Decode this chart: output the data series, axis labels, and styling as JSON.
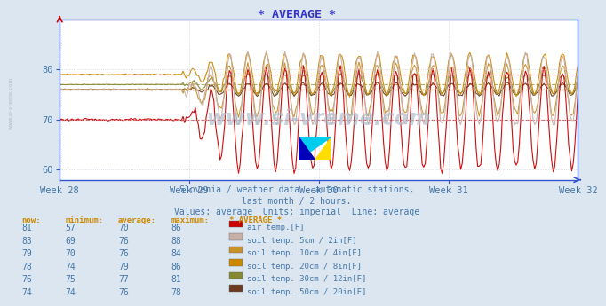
{
  "title": "* AVERAGE *",
  "subtitle1": "Slovenia / weather data - automatic stations.",
  "subtitle2": "last month / 2 hours.",
  "subtitle3": "Values: average  Units: imperial  Line: average",
  "watermark": "www.si-vreme.com",
  "x_tick_labels": [
    "Week 28",
    "Week 29",
    "Week 30",
    "Week 31",
    "Week 32"
  ],
  "x_tick_positions": [
    0,
    84,
    168,
    252,
    336
  ],
  "y_ticks": [
    60,
    70,
    80
  ],
  "ylim": [
    58,
    90
  ],
  "xlim": [
    0,
    336
  ],
  "bg_color": "#dce6f0",
  "plot_bg_color": "#ffffff",
  "grid_color": "#ccccdd",
  "title_color": "#3333cc",
  "axis_color": "#3355cc",
  "text_color": "#4477aa",
  "watermark_color": "#aabbcc",
  "series_colors": [
    "#cc0000",
    "#c8b0a8",
    "#c8922a",
    "#cc8800",
    "#888833",
    "#6b3a1f"
  ],
  "series_labels": [
    "air temp.[F]",
    "soil temp. 5cm / 2in[F]",
    "soil temp. 10cm / 4in[F]",
    "soil temp. 20cm / 8in[F]",
    "soil temp. 30cm / 12in[F]",
    "soil temp. 50cm / 20in[F]"
  ],
  "table_headers": [
    "now:",
    "minimum:",
    "average:",
    "maximum:",
    "* AVERAGE *"
  ],
  "table_data": [
    [
      81,
      57,
      70,
      86
    ],
    [
      83,
      69,
      76,
      88
    ],
    [
      79,
      70,
      76,
      84
    ],
    [
      78,
      74,
      79,
      86
    ],
    [
      76,
      75,
      77,
      81
    ],
    [
      74,
      74,
      76,
      78
    ]
  ],
  "n_points": 337,
  "avg_values": [
    70,
    76,
    76,
    79,
    77,
    76
  ],
  "min_values": [
    57,
    69,
    70,
    74,
    75,
    74
  ],
  "max_values": [
    86,
    88,
    84,
    86,
    81,
    78
  ],
  "flat_end": 80,
  "cycle_period": 12,
  "cycle_amps": [
    10,
    7,
    5,
    4,
    2,
    1.2
  ],
  "noise_scales": [
    0.5,
    0.5,
    0.4,
    0.3,
    0.2,
    0.15
  ]
}
